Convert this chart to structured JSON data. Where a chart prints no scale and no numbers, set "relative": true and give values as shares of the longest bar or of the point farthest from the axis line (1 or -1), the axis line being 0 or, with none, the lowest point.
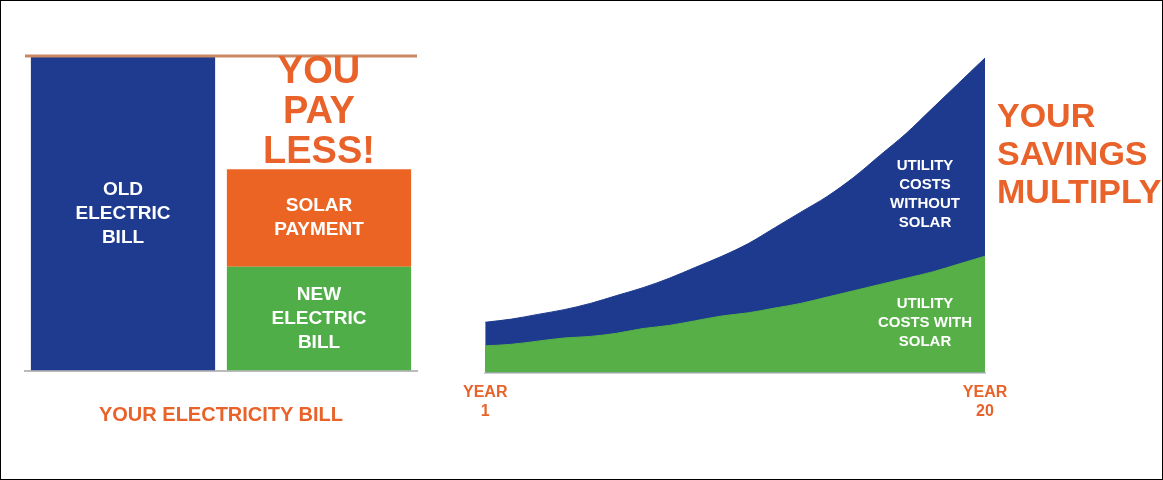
{
  "chart_data": [
    {
      "type": "bar",
      "relative": true,
      "stacked": true,
      "categories": [
        null,
        null
      ],
      "xlabel": "YOUR ELECTRICITY BILL",
      "series": [
        {
          "name": "OLD ELECTRIC BILL",
          "color": "#1f3b8f",
          "values": [
            1,
            null
          ]
        },
        {
          "name": "NEW ELECTRIC BILL",
          "color": "#4fae47",
          "values": [
            null,
            0.33
          ]
        },
        {
          "name": "SOLAR PAYMENT",
          "color": "#ec6424",
          "values": [
            null,
            0.31
          ]
        }
      ],
      "ref_lines": [
        {
          "axis": "y",
          "value": 1,
          "color": "#c98a63"
        }
      ],
      "annotations": [
        "YOU PAY LESS!"
      ]
    },
    {
      "type": "area",
      "relative": true,
      "categories": [
        "YEAR 1",
        null,
        null,
        null,
        null,
        null,
        null,
        null,
        null,
        null,
        null,
        null,
        null,
        null,
        null,
        null,
        null,
        null,
        null,
        "YEAR 20"
      ],
      "series": [
        {
          "name": "UTILITY COSTS WITHOUT SOLAR",
          "color": "#1e3a8e",
          "values": [
            0.16,
            0.17,
            0.185,
            0.2,
            0.22,
            0.245,
            0.27,
            0.3,
            0.335,
            0.37,
            0.41,
            0.46,
            0.51,
            0.56,
            0.62,
            0.69,
            0.76,
            0.84,
            0.92,
            1
          ]
        },
        {
          "name": "UTILITY COSTS WITH SOLAR",
          "color": "#56b047",
          "values": [
            0.085,
            0.09,
            0.1,
            0.11,
            0.115,
            0.125,
            0.14,
            0.15,
            0.165,
            0.18,
            0.19,
            0.205,
            0.22,
            0.24,
            0.26,
            0.28,
            0.3,
            0.32,
            0.345,
            0.37
          ]
        }
      ],
      "annotations": [
        "YOUR SAVINGS MULTIPLY"
      ]
    }
  ]
}
